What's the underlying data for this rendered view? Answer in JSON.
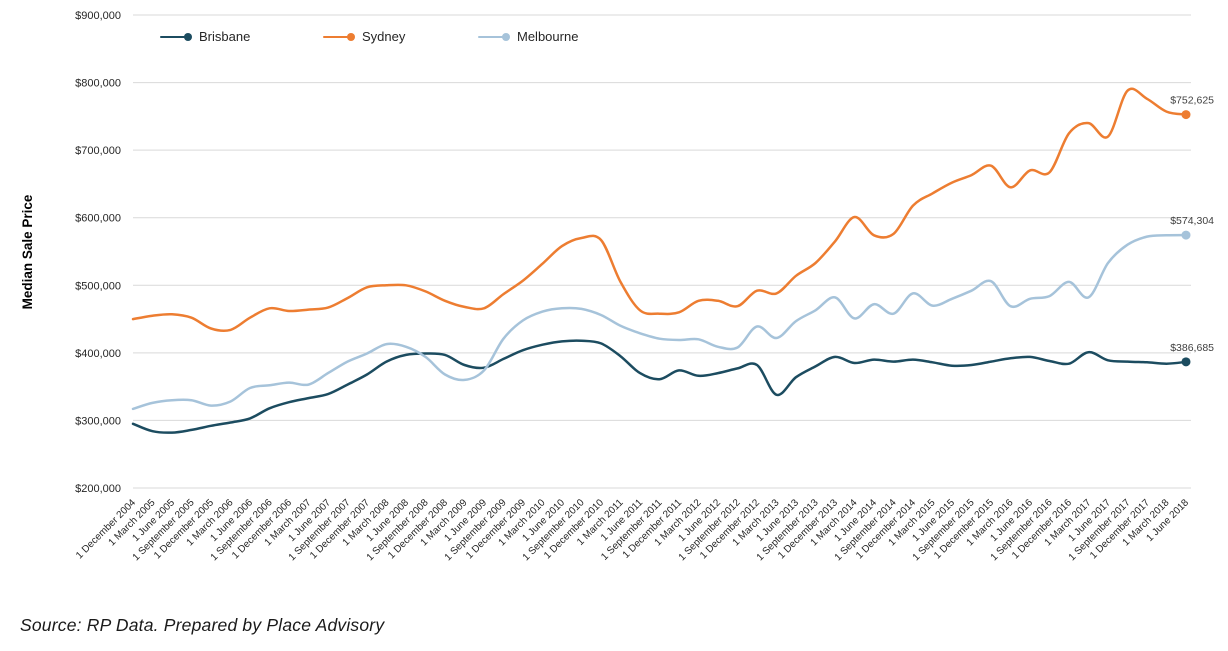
{
  "page": {
    "source_note": "Source: RP Data. Prepared by Place Advisory"
  },
  "legend": [
    {
      "label": "Brisbane",
      "color": "#1c4c60"
    },
    {
      "label": "Sydney",
      "color": "#ed7d31"
    },
    {
      "label": "Melbourne",
      "color": "#a6c3da"
    }
  ],
  "chart_data": {
    "type": "line",
    "title": "",
    "xlabel": "",
    "ylabel": "Median Sale Price",
    "ylim": [
      200000,
      900000
    ],
    "ytick_step": 100000,
    "ytick_labels": [
      "$200,000",
      "$300,000",
      "$400,000",
      "$500,000",
      "$600,000",
      "$700,000",
      "$800,000",
      "$900,000"
    ],
    "grid": "horizontal",
    "gridline_color": "#d9d9d9",
    "legend_position": "top-left-inside",
    "categories": [
      "1 December 2004",
      "1 March 2005",
      "1 June 2005",
      "1 September 2005",
      "1 December 2005",
      "1 March 2006",
      "1 June 2006",
      "1 September 2006",
      "1 December 2006",
      "1 March 2007",
      "1 June 2007",
      "1 September 2007",
      "1 December 2007",
      "1 March 2008",
      "1 June 2008",
      "1 September 2008",
      "1 December 2008",
      "1 March 2009",
      "1 June 2009",
      "1 September 2009",
      "1 December 2009",
      "1 March 2010",
      "1 June 2010",
      "1 September 2010",
      "1 December 2010",
      "1 March 2011",
      "1 June 2011",
      "1 September 2011",
      "1 December 2011",
      "1 March 2012",
      "1 June 2012",
      "1 September 2012",
      "1 December 2012",
      "1 March 2013",
      "1 June 2013",
      "1 September 2013",
      "1 December 2013",
      "1 March 2014",
      "1 June 2014",
      "1 September 2014",
      "1 December 2014",
      "1 March 2015",
      "1 June 2015",
      "1 September 2015",
      "1 December 2015",
      "1 March 2016",
      "1 June 2016",
      "1 September 2016",
      "1 December 2016",
      "1 March 2017",
      "1 June 2017",
      "1 September 2017",
      "1 December 2017",
      "1 March 2018",
      "1 June 2018"
    ],
    "series": [
      {
        "name": "Brisbane",
        "color": "#1c4c60",
        "end_label": "$386,685",
        "values": [
          295000,
          284000,
          282000,
          286000,
          292000,
          297000,
          303000,
          318000,
          327000,
          333000,
          339000,
          353000,
          368000,
          387000,
          397000,
          399000,
          397000,
          382000,
          378000,
          391000,
          404000,
          412000,
          417000,
          418000,
          414000,
          395000,
          370000,
          361000,
          374000,
          366000,
          370000,
          377000,
          382000,
          338000,
          364000,
          380000,
          394000,
          385000,
          390000,
          387000,
          390000,
          386000,
          381000,
          382000,
          387000,
          392000,
          394000,
          388000,
          384000,
          401000,
          389000,
          387000,
          386000,
          384000,
          386685
        ]
      },
      {
        "name": "Sydney",
        "color": "#ed7d31",
        "end_label": "$752,625",
        "values": [
          450000,
          455000,
          457000,
          452000,
          436000,
          434000,
          452000,
          466000,
          462000,
          464000,
          467000,
          481000,
          497000,
          500000,
          500000,
          491000,
          477000,
          468000,
          466000,
          487000,
          507000,
          532000,
          558000,
          570000,
          567000,
          505000,
          463000,
          458000,
          460000,
          477000,
          477000,
          469000,
          492000,
          488000,
          514000,
          533000,
          565000,
          601000,
          574000,
          576000,
          618000,
          636000,
          652000,
          663000,
          677000,
          645000,
          670000,
          667000,
          725000,
          740000,
          720000,
          788000,
          776000,
          757000,
          752625
        ]
      },
      {
        "name": "Melbourne",
        "color": "#a6c3da",
        "end_label": "$574,304",
        "values": [
          317000,
          326000,
          330000,
          330000,
          322000,
          328000,
          348000,
          352000,
          356000,
          353000,
          370000,
          387000,
          399000,
          413000,
          409000,
          394000,
          368000,
          360000,
          374000,
          421000,
          448000,
          461000,
          466000,
          465000,
          456000,
          440000,
          429000,
          421000,
          419000,
          420000,
          409000,
          408000,
          439000,
          422000,
          447000,
          463000,
          482000,
          451000,
          472000,
          458000,
          488000,
          470000,
          480000,
          492000,
          506000,
          469000,
          480000,
          484000,
          505000,
          482000,
          533000,
          560000,
          572000,
          574000,
          574304
        ]
      }
    ]
  }
}
